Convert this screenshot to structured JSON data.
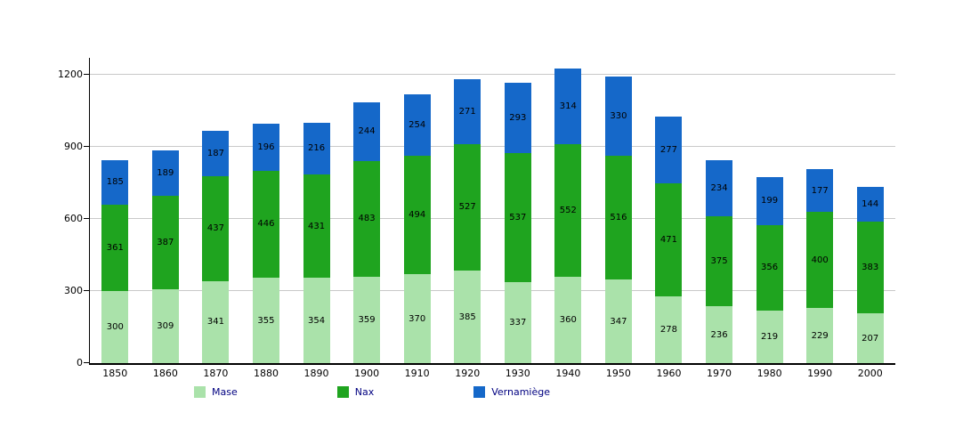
{
  "chart_data": {
    "type": "bar",
    "stacked": true,
    "title": "",
    "xlabel": "",
    "ylabel": "",
    "categories": [
      "1850",
      "1860",
      "1870",
      "1880",
      "1890",
      "1900",
      "1910",
      "1920",
      "1930",
      "1940",
      "1950",
      "1960",
      "1970",
      "1980",
      "1990",
      "2000"
    ],
    "series": [
      {
        "name": "Mase",
        "color": "#aae2aa",
        "values": [
          300,
          309,
          341,
          355,
          354,
          359,
          370,
          385,
          337,
          360,
          347,
          278,
          236,
          219,
          229,
          207
        ]
      },
      {
        "name": "Nax",
        "color": "#1fa41f",
        "values": [
          361,
          387,
          437,
          446,
          431,
          483,
          494,
          527,
          537,
          552,
          516,
          471,
          375,
          356,
          400,
          383
        ]
      },
      {
        "name": "Vernamiège",
        "color": "#1568c9",
        "values": [
          185,
          189,
          187,
          196,
          216,
          244,
          254,
          271,
          293,
          314,
          330,
          277,
          234,
          199,
          177,
          144
        ]
      }
    ],
    "y_ticks": [
      0,
      300,
      600,
      900,
      1200
    ],
    "ylim": [
      0,
      1270
    ],
    "grid": true,
    "legend_position": "bottom"
  }
}
